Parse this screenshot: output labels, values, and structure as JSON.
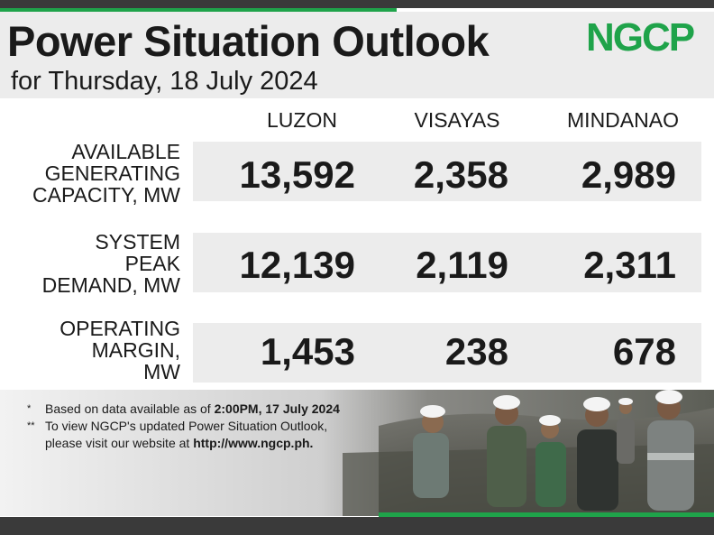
{
  "header": {
    "title": "Power Situation Outlook",
    "subtitle": "for Thursday, 18 July 2024",
    "logo_text": "NGCP"
  },
  "columns": [
    "LUZON",
    "VISAYAS",
    "MINDANAO"
  ],
  "rows": [
    {
      "label_lines": [
        "AVAILABLE",
        "GENERATING",
        "CAPACITY, MW"
      ],
      "values": [
        "13,592",
        "2,358",
        "2,989"
      ]
    },
    {
      "label_lines": [
        "SYSTEM",
        "PEAK",
        "DEMAND, MW"
      ],
      "values": [
        "12,139",
        "2,119",
        "2,311"
      ]
    },
    {
      "label_lines": [
        "OPERATING",
        "MARGIN,",
        "MW"
      ],
      "values": [
        "1,453",
        "238",
        "678"
      ]
    }
  ],
  "notes": [
    {
      "marker": "*",
      "text_before": "Based on data available as of ",
      "bold": "2:00PM, 17 July 2024",
      "text_after": ""
    },
    {
      "marker": "**",
      "text_before": "To view NGCP's updated Power Situation Outlook, please visit our website at ",
      "bold": "http://www.ngcp.ph.",
      "text_after": ""
    }
  ],
  "colors": {
    "brand_green": "#1fa34a",
    "dark": "#1a1a1a",
    "band": "#ececec",
    "bar": "#3a3a3a"
  }
}
